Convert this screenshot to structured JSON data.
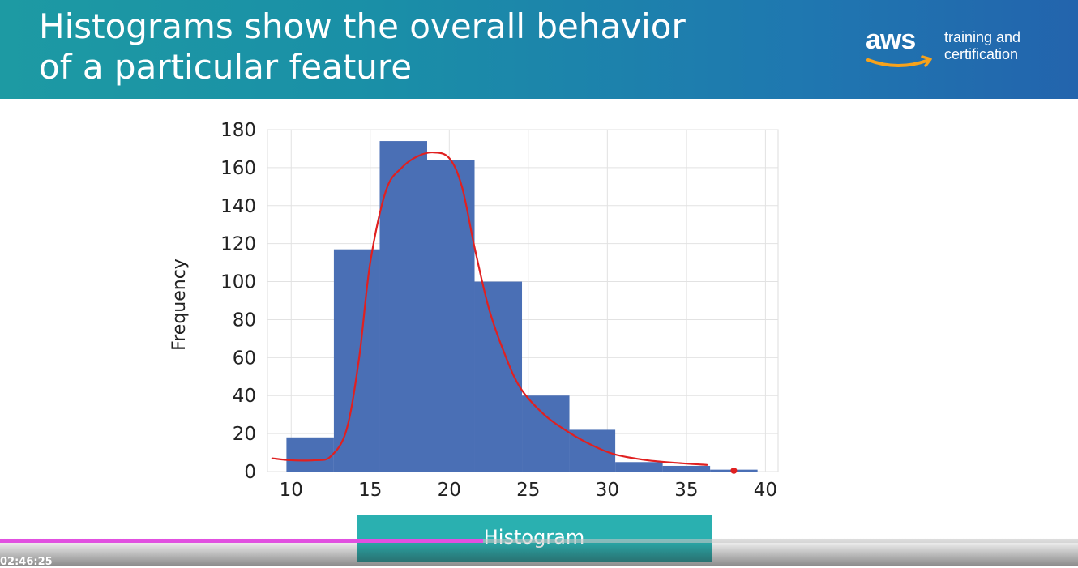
{
  "slide": {
    "title_line1": "Histograms show the overall behavior",
    "title_line2": "of a particular feature",
    "brand": {
      "logo_word": "aws",
      "tagline_line1": "training and",
      "tagline_line2": "certification"
    },
    "caption": "Histogram"
  },
  "chart_data": {
    "type": "bar",
    "title": "",
    "xlabel": "",
    "ylabel": "Frequency",
    "bins": [
      {
        "x0": 9.7,
        "x1": 12.7,
        "value": 18
      },
      {
        "x0": 12.7,
        "x1": 15.6,
        "value": 117
      },
      {
        "x0": 15.6,
        "x1": 18.6,
        "value": 174
      },
      {
        "x0": 18.6,
        "x1": 21.6,
        "value": 164
      },
      {
        "x0": 21.6,
        "x1": 24.6,
        "value": 100
      },
      {
        "x0": 24.6,
        "x1": 27.6,
        "value": 40
      },
      {
        "x0": 27.6,
        "x1": 30.5,
        "value": 22
      },
      {
        "x0": 30.5,
        "x1": 33.5,
        "value": 5
      },
      {
        "x0": 33.5,
        "x1": 36.5,
        "value": 3
      },
      {
        "x0": 36.5,
        "x1": 39.5,
        "value": 1
      }
    ],
    "x_ticks": [
      "10",
      "15",
      "20",
      "25",
      "30",
      "35",
      "40"
    ],
    "y_ticks": [
      "0",
      "20",
      "40",
      "60",
      "80",
      "100",
      "120",
      "140",
      "160",
      "180"
    ],
    "xlim": [
      8.5,
      40.8
    ],
    "ylim": [
      0,
      180
    ],
    "grid": true,
    "bar_color": "#4a6fb5",
    "annotation": {
      "type": "hand-drawn density curve",
      "color": "#e02020",
      "points": [
        [
          8.8,
          7
        ],
        [
          10,
          6
        ],
        [
          11.5,
          6
        ],
        [
          12.5,
          8
        ],
        [
          13.5,
          22
        ],
        [
          14.3,
          60
        ],
        [
          15,
          110
        ],
        [
          16,
          148
        ],
        [
          17,
          160
        ],
        [
          18,
          166
        ],
        [
          19,
          168
        ],
        [
          20,
          165
        ],
        [
          20.8,
          150
        ],
        [
          21.6,
          118
        ],
        [
          22.5,
          86
        ],
        [
          23.5,
          62
        ],
        [
          24.5,
          44
        ],
        [
          26,
          30
        ],
        [
          27.5,
          21
        ],
        [
          29,
          14
        ],
        [
          30.5,
          9
        ],
        [
          32.5,
          6
        ],
        [
          34.5,
          4.5
        ],
        [
          36.3,
          3.5
        ]
      ],
      "dot": [
        38,
        0.5
      ]
    }
  },
  "player": {
    "timecode": "02:46:25",
    "progress_percent": 44.8,
    "progress_color": "#e150e0"
  }
}
